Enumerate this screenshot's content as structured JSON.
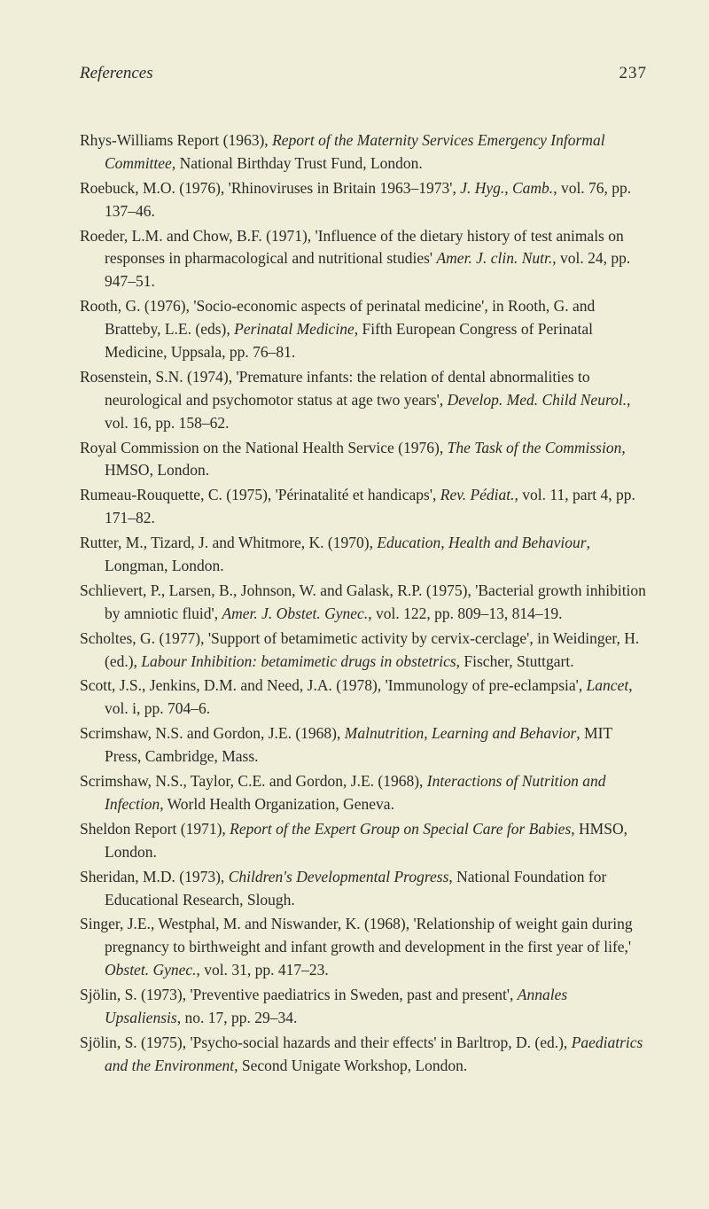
{
  "header": {
    "title": "References",
    "page_number": "237"
  },
  "entries": [
    {
      "html": "Rhys-Williams Report (1963), <span class='italic'>Report of the Maternity Services Emergency Informal Committee,</span> National Birthday Trust Fund, London."
    },
    {
      "html": "Roebuck, M.O. (1976), 'Rhinoviruses in Britain 1963–1973', <span class='italic'>J. Hyg., Camb.</span>, vol. 76, pp. 137–46."
    },
    {
      "html": "Roeder, L.M. and Chow, B.F. (1971), 'Influence of the dietary history of test animals on responses in pharmacological and nutritional studies' <span class='italic'>Amer. J. clin. Nutr.</span>, vol. 24, pp. 947–51."
    },
    {
      "html": "Rooth, G. (1976), 'Socio-economic aspects of perinatal medicine', in Rooth, G. and Bratteby, L.E. (eds), <span class='italic'>Perinatal Medicine</span>, Fifth European Congress of Perinatal Medicine, Uppsala, pp. 76–81."
    },
    {
      "html": "Rosenstein, S.N. (1974), 'Premature infants: the relation of dental abnormalities to neurological and psychomotor status at age two years', <span class='italic'>Develop. Med. Child Neurol.</span>, vol. 16, pp. 158–62."
    },
    {
      "html": "Royal Commission on the National Health Service (1976), <span class='italic'>The Task of the Commission</span>, HMSO, London."
    },
    {
      "html": "Rumeau-Rouquette, C. (1975), 'Périnatalité et handicaps', <span class='italic'>Rev. Pédiat.</span>, vol. 11, part 4, pp. 171–82."
    },
    {
      "html": "Rutter, M., Tizard, J. and Whitmore, K. (1970), <span class='italic'>Education, Health and Behaviour</span>, Longman, London."
    },
    {
      "html": "Schlievert, P., Larsen, B., Johnson, W. and Galask, R.P. (1975), 'Bacterial growth inhibition by amniotic fluid', <span class='italic'>Amer. J. Obstet. Gynec.</span>, vol. 122, pp. 809–13, 814–19."
    },
    {
      "html": "Scholtes, G. (1977), 'Support of betamimetic activity by cervix-cerclage', in Weidinger, H. (ed.), <span class='italic'>Labour Inhibition: betamimetic drugs in obstetrics</span>, Fischer, Stuttgart."
    },
    {
      "html": "Scott, J.S., Jenkins, D.M. and Need, J.A. (1978), 'Immunology of pre-eclampsia', <span class='italic'>Lancet</span>, vol. i, pp. 704–6."
    },
    {
      "html": "Scrimshaw, N.S. and Gordon, J.E. (1968), <span class='italic'>Malnutrition, Learning and Behavior</span>, MIT Press, Cambridge, Mass."
    },
    {
      "html": "Scrimshaw, N.S., Taylor, C.E. and Gordon, J.E. (1968), <span class='italic'>Interactions of Nutrition and Infection</span>, World Health Organization, Geneva."
    },
    {
      "html": "Sheldon Report (1971), <span class='italic'>Report of the Expert Group on Special Care for Babies</span>, HMSO, London."
    },
    {
      "html": "Sheridan, M.D. (1973), <span class='italic'>Children's Developmental Progress</span>, National Foundation for Educational Research, Slough."
    },
    {
      "html": "Singer, J.E., Westphal, M. and Niswander, K. (1968), 'Relationship of weight gain during pregnancy to birthweight and infant growth and development in the first year of life,' <span class='italic'>Obstet. Gynec.</span>, vol. 31, pp. 417–23."
    },
    {
      "html": "Sjölin, S. (1973), 'Preventive paediatrics in Sweden, past and present', <span class='italic'>Annales Upsaliensis</span>, no. 17, pp. 29–34."
    },
    {
      "html": "Sjölin, S. (1975), 'Psycho-social hazards and their effects' in Barltrop, D. (ed.), <span class='italic'>Paediatrics and the Environment</span>, Second Unigate Workshop, London."
    }
  ]
}
